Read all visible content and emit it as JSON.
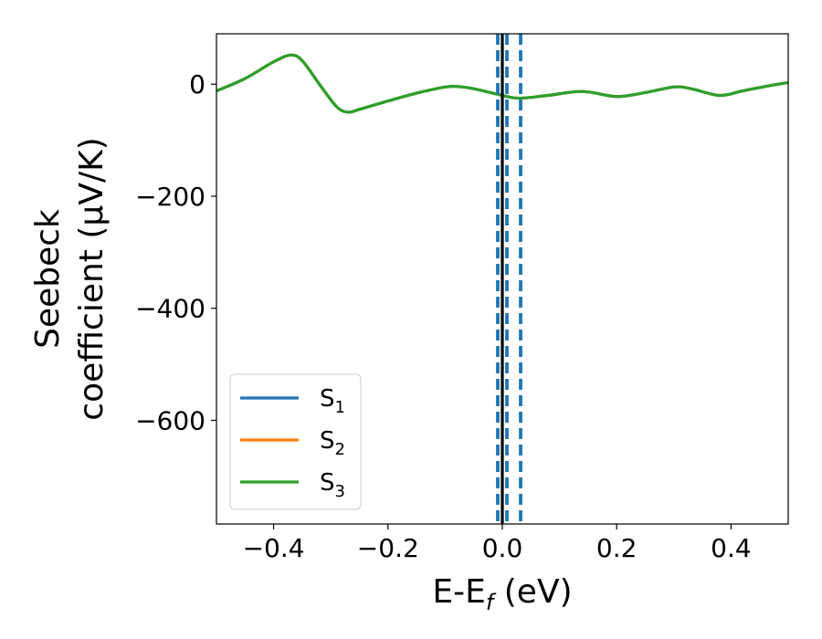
{
  "chart_data": {
    "type": "line",
    "xlabel": {
      "main": "E-E",
      "sub": "f",
      "unit": " (eV)"
    },
    "ylabel": {
      "line1": "Seebeck",
      "line2": "coefficient  (μV/K)"
    },
    "xlim": [
      -0.5,
      0.5
    ],
    "ylim": [
      -785,
      90
    ],
    "xticks": [
      -0.4,
      -0.2,
      0.0,
      0.2,
      0.4
    ],
    "xtick_labels": [
      "−0.4",
      "−0.2",
      "0.0",
      "0.2",
      "0.4"
    ],
    "yticks": [
      0,
      -200,
      -400,
      -600
    ],
    "ytick_labels": [
      "0",
      "−200",
      "−400",
      "−600"
    ],
    "grid": false,
    "legend_position": "lower-left",
    "series": [
      {
        "name": "S",
        "sub": "1",
        "color": "#1f77b4",
        "x": [
          -0.5,
          -0.45,
          -0.4,
          -0.37,
          -0.35,
          -0.32,
          -0.29,
          -0.27,
          -0.25,
          -0.2,
          -0.15,
          -0.1,
          -0.08,
          -0.05,
          0.0,
          0.03,
          0.08,
          0.14,
          0.2,
          0.25,
          0.3,
          0.33,
          0.38,
          0.42,
          0.46,
          0.5
        ],
        "y": [
          -12,
          10,
          40,
          52,
          42,
          0,
          -40,
          -50,
          -45,
          -30,
          -16,
          -5,
          -4,
          -8,
          -20,
          -25,
          -20,
          -13,
          -22,
          -15,
          -5,
          -8,
          -20,
          -12,
          -4,
          3
        ]
      },
      {
        "name": "S",
        "sub": "2",
        "color": "#ff7f0e",
        "x": [
          -0.5,
          -0.45,
          -0.4,
          -0.37,
          -0.35,
          -0.32,
          -0.29,
          -0.27,
          -0.25,
          -0.2,
          -0.15,
          -0.1,
          -0.08,
          -0.05,
          0.0,
          0.03,
          0.08,
          0.14,
          0.2,
          0.25,
          0.3,
          0.33,
          0.38,
          0.42,
          0.46,
          0.5
        ],
        "y": [
          -12,
          10,
          40,
          52,
          42,
          0,
          -40,
          -50,
          -45,
          -30,
          -16,
          -5,
          -4,
          -8,
          -20,
          -25,
          -20,
          -13,
          -22,
          -15,
          -5,
          -8,
          -20,
          -12,
          -4,
          3
        ]
      },
      {
        "name": "S",
        "sub": "3",
        "color": "#2ca02c",
        "x": [
          -0.5,
          -0.45,
          -0.4,
          -0.37,
          -0.35,
          -0.32,
          -0.29,
          -0.27,
          -0.25,
          -0.2,
          -0.15,
          -0.1,
          -0.08,
          -0.05,
          0.0,
          0.03,
          0.08,
          0.14,
          0.2,
          0.25,
          0.3,
          0.33,
          0.38,
          0.42,
          0.46,
          0.5
        ],
        "y": [
          -12,
          10,
          40,
          52,
          42,
          0,
          -40,
          -50,
          -45,
          -30,
          -16,
          -5,
          -4,
          -8,
          -20,
          -25,
          -20,
          -13,
          -22,
          -15,
          -5,
          -8,
          -20,
          -12,
          -4,
          3
        ]
      }
    ],
    "vlines": [
      {
        "x": -0.008,
        "style": "dashed",
        "color": "#1f77b4"
      },
      {
        "x": 0.008,
        "style": "dashed",
        "color": "#1f77b4"
      },
      {
        "x": 0.032,
        "style": "dashed",
        "color": "#1f77b4"
      },
      {
        "x": 0.0,
        "style": "solid",
        "color": "#000000"
      }
    ]
  }
}
